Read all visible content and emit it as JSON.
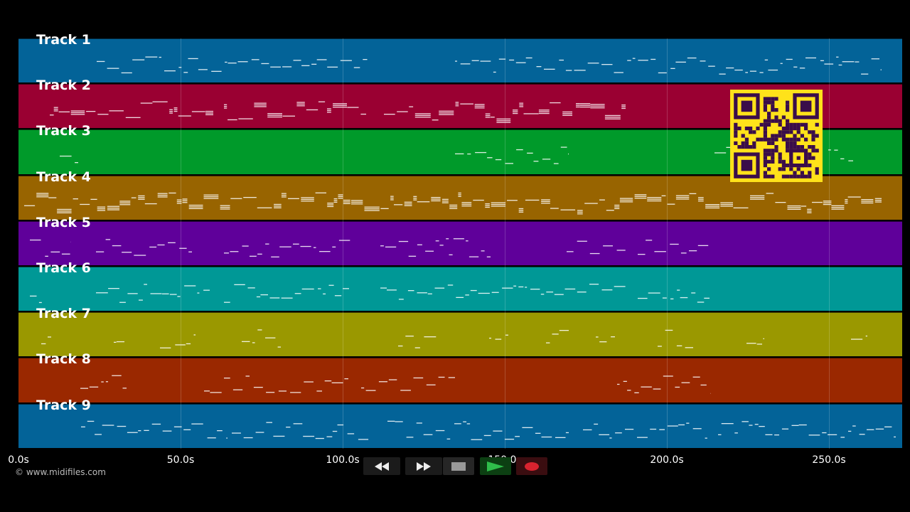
{
  "tracks": [
    {
      "name": "Track 1",
      "color": "#036398"
    },
    {
      "name": "Track 2",
      "color": "#9a0032"
    },
    {
      "name": "Track 3",
      "color": "#009a2a"
    },
    {
      "name": "Track 4",
      "color": "#986400"
    },
    {
      "name": "Track 5",
      "color": "#5f009a"
    },
    {
      "name": "Track 6",
      "color": "#009896"
    },
    {
      "name": "Track 7",
      "color": "#9a9800"
    },
    {
      "name": "Track 8",
      "color": "#9a2800"
    },
    {
      "name": "Track 9",
      "color": "#036398"
    }
  ],
  "timeline": {
    "ticks": [
      "0.0s",
      "50.0s",
      "100.0s",
      "150.0s",
      "200.0s",
      "250.0s"
    ],
    "max_seconds": 273
  },
  "controls": {
    "rewind": {
      "icon": "rewind-icon"
    },
    "fast_forward": {
      "icon": "fast-forward-icon"
    },
    "stop": {
      "icon": "stop-icon"
    },
    "play": {
      "icon": "play-icon",
      "active": true
    },
    "record": {
      "icon": "record-icon"
    }
  },
  "qr_color": "#ffe21a",
  "copyright": "© www.midifiles.com"
}
